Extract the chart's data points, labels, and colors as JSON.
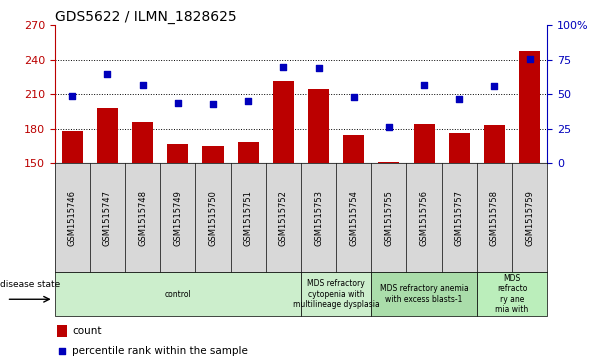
{
  "title": "GDS5622 / ILMN_1828625",
  "samples": [
    "GSM1515746",
    "GSM1515747",
    "GSM1515748",
    "GSM1515749",
    "GSM1515750",
    "GSM1515751",
    "GSM1515752",
    "GSM1515753",
    "GSM1515754",
    "GSM1515755",
    "GSM1515756",
    "GSM1515757",
    "GSM1515758",
    "GSM1515759"
  ],
  "counts": [
    178,
    198,
    186,
    167,
    165,
    169,
    222,
    215,
    175,
    151,
    184,
    176,
    183,
    248
  ],
  "percentiles": [
    49,
    65,
    57,
    44,
    43,
    45,
    70,
    69,
    48,
    26,
    57,
    47,
    56,
    76
  ],
  "ylim_left": [
    150,
    270
  ],
  "ylim_right": [
    0,
    100
  ],
  "yticks_left": [
    150,
    180,
    210,
    240,
    270
  ],
  "yticks_right": [
    0,
    25,
    50,
    75,
    100
  ],
  "yticklabels_right": [
    "0",
    "25",
    "50",
    "75",
    "100%"
  ],
  "bar_color": "#bb0000",
  "dot_color": "#0000bb",
  "bg_color": "#d8d8d8",
  "disease_groups": [
    {
      "label": "control",
      "start": 0,
      "end": 7,
      "color": "#cceecc"
    },
    {
      "label": "MDS refractory\ncytopenia with\nmultilineage dysplasia",
      "start": 7,
      "end": 9,
      "color": "#cceecc"
    },
    {
      "label": "MDS refractory anemia\nwith excess blasts-1",
      "start": 9,
      "end": 12,
      "color": "#aaddaa"
    },
    {
      "label": "MDS\nrefracto\nry ane\nmia with",
      "start": 12,
      "end": 14,
      "color": "#bbeebb"
    }
  ],
  "disease_state_label": "disease state",
  "legend_count_label": "count",
  "legend_percentile_label": "percentile rank within the sample",
  "grid_color": "#888888"
}
